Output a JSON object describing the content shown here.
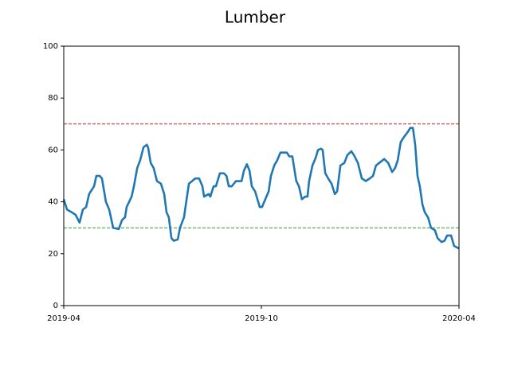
{
  "chart_data": {
    "type": "line",
    "title": "Lumber",
    "x": [
      0,
      0.1,
      0.24,
      0.36,
      0.48,
      0.58,
      0.68,
      0.77,
      0.92,
      0.99,
      1.09,
      1.16,
      1.28,
      1.38,
      1.5,
      1.67,
      1.77,
      1.86,
      1.91,
      2.06,
      2.13,
      2.23,
      2.32,
      2.42,
      2.52,
      2.56,
      2.64,
      2.73,
      2.83,
      2.95,
      3.05,
      3.12,
      3.19,
      3.27,
      3.34,
      3.46,
      3.53,
      3.65,
      3.73,
      3.8,
      3.9,
      3.99,
      4.11,
      4.21,
      4.26,
      4.4,
      4.45,
      4.55,
      4.62,
      4.74,
      4.86,
      4.94,
      5.01,
      5.1,
      5.23,
      5.32,
      5.4,
      5.47,
      5.56,
      5.64,
      5.71,
      5.81,
      5.88,
      5.95,
      6.02,
      6.12,
      6.22,
      6.29,
      6.39,
      6.48,
      6.58,
      6.7,
      6.77,
      6.85,
      6.94,
      7.06,
      7.14,
      7.23,
      7.33,
      7.4,
      7.45,
      7.55,
      7.65,
      7.72,
      7.81,
      7.86,
      7.94,
      8.03,
      8.13,
      8.23,
      8.3,
      8.4,
      8.52,
      8.61,
      8.73,
      8.81,
      8.93,
      9.05,
      9.17,
      9.29,
      9.39,
      9.48,
      9.58,
      9.73,
      9.85,
      9.97,
      10.06,
      10.14,
      10.23,
      10.33,
      10.45,
      10.52,
      10.6,
      10.67,
      10.74,
      10.81,
      10.89,
      10.96,
      11.06,
      11.15,
      11.27,
      11.35,
      11.47,
      11.56,
      11.64,
      11.76,
      11.85,
      12
    ],
    "series": [
      {
        "name": "Lumber",
        "color": "#1f77b4",
        "values": [
          41,
          37,
          36,
          35,
          32,
          37,
          38,
          43,
          46,
          50,
          50,
          49,
          40,
          37,
          30,
          29.5,
          33,
          34,
          38,
          42,
          46,
          53,
          56,
          61,
          62,
          61,
          55,
          53,
          48,
          47,
          43,
          36,
          34,
          26,
          25,
          25.5,
          30,
          34,
          41,
          47,
          48,
          49,
          49,
          46,
          42,
          43,
          42,
          46,
          46,
          51,
          51,
          50,
          46,
          46,
          48,
          48,
          48,
          52,
          54.5,
          52,
          46,
          44,
          41,
          38,
          38,
          41,
          44,
          50,
          54,
          56,
          59,
          59,
          59,
          57.5,
          57.5,
          48,
          46,
          41,
          42,
          42,
          48,
          54,
          57,
          60,
          60.5,
          60,
          51,
          49,
          47,
          43,
          44,
          54,
          55,
          58,
          59.5,
          58,
          55,
          49,
          48,
          49,
          50,
          54,
          55,
          56.5,
          55,
          51.5,
          53,
          56,
          63,
          65,
          67,
          68.5,
          68.5,
          62,
          50,
          46,
          39,
          36,
          34,
          30,
          29,
          26,
          24.5,
          25,
          27,
          27,
          23,
          22
        ]
      }
    ],
    "hlines": [
      {
        "value": 70,
        "color": "#d62728"
      },
      {
        "value": 30,
        "color": "#2ca02c"
      }
    ],
    "xlim": [
      0,
      12
    ],
    "xticks": [
      {
        "value": 0,
        "label": "2019-04"
      },
      {
        "value": 6,
        "label": "2019-10"
      },
      {
        "value": 12,
        "label": "2020-04"
      }
    ],
    "ylim": [
      0,
      100
    ],
    "yticks": [
      0,
      20,
      40,
      60,
      80,
      100
    ]
  }
}
